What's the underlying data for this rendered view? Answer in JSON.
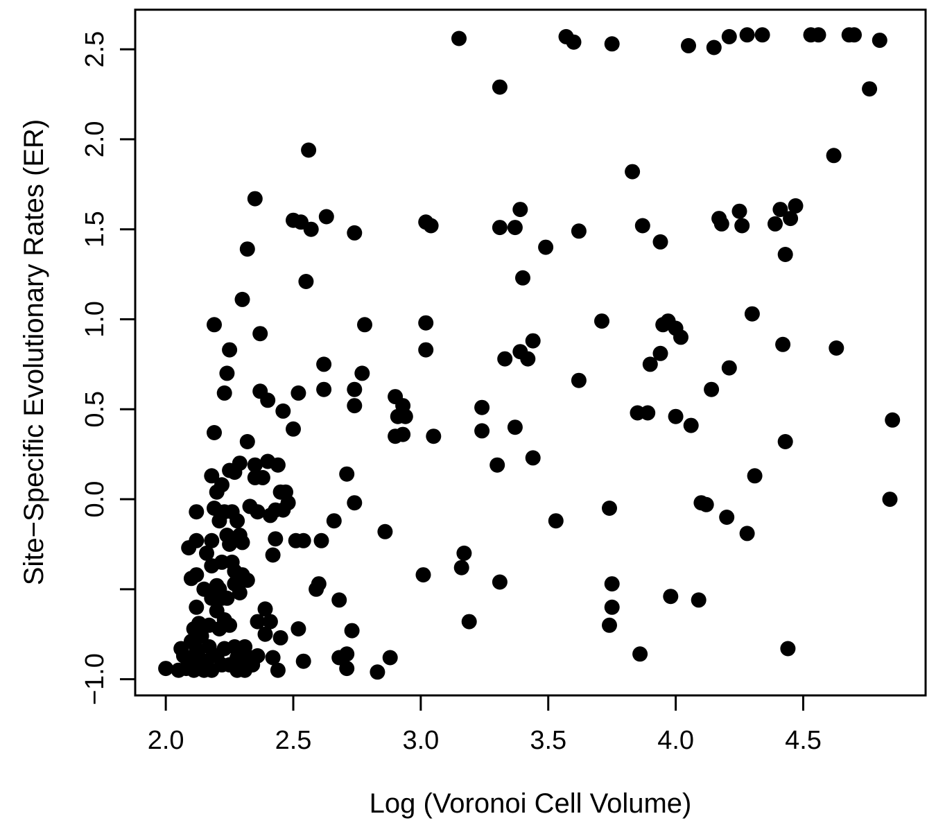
{
  "chart_data": {
    "type": "scatter",
    "title": "",
    "xlabel": "Log (Voronoi Cell Volume)",
    "ylabel": "Site−Specific Evolutionary Rates (ER)",
    "xlim": [
      1.88,
      4.98
    ],
    "ylim": [
      -1.09,
      2.72
    ],
    "x_ticks": [
      "2.0",
      "2.5",
      "3.0",
      "3.5",
      "4.0",
      "4.5"
    ],
    "y_ticks": [
      "−1.0",
      "",
      "0.0",
      "0.5",
      "1.0",
      "1.5",
      "2.0",
      "2.5"
    ],
    "y_tick_values": [
      -1.0,
      -0.5,
      0.0,
      0.5,
      1.0,
      1.5,
      2.0,
      2.5
    ],
    "grid": false,
    "legend": "none",
    "marker_color": "#000000",
    "points": [
      [
        2.0,
        -0.94
      ],
      [
        2.05,
        -0.95
      ],
      [
        2.06,
        -0.83
      ],
      [
        2.07,
        -0.87
      ],
      [
        2.08,
        -0.94
      ],
      [
        2.09,
        -0.89
      ],
      [
        2.09,
        -0.27
      ],
      [
        2.1,
        -0.44
      ],
      [
        2.1,
        -0.79
      ],
      [
        2.11,
        -0.72
      ],
      [
        2.11,
        -0.95
      ],
      [
        2.12,
        -0.07
      ],
      [
        2.12,
        -0.23
      ],
      [
        2.12,
        -0.42
      ],
      [
        2.12,
        -0.6
      ],
      [
        2.12,
        -0.83
      ],
      [
        2.13,
        -0.69
      ],
      [
        2.13,
        -0.88
      ],
      [
        2.13,
        -0.94
      ],
      [
        2.14,
        -0.76
      ],
      [
        2.15,
        -0.95
      ],
      [
        2.15,
        -0.5
      ],
      [
        2.16,
        -0.3
      ],
      [
        2.16,
        -0.9
      ],
      [
        2.17,
        -0.7
      ],
      [
        2.17,
        -0.82
      ],
      [
        2.18,
        -0.37
      ],
      [
        2.18,
        -0.23
      ],
      [
        2.18,
        -0.55
      ],
      [
        2.18,
        -0.95
      ],
      [
        2.18,
        0.13
      ],
      [
        2.19,
        -0.05
      ],
      [
        2.19,
        0.37
      ],
      [
        2.19,
        0.97
      ],
      [
        2.2,
        0.04
      ],
      [
        2.2,
        -0.48
      ],
      [
        2.2,
        -0.62
      ],
      [
        2.2,
        -0.87
      ],
      [
        2.21,
        -0.12
      ],
      [
        2.21,
        -0.5
      ],
      [
        2.21,
        -0.72
      ],
      [
        2.22,
        -0.92
      ],
      [
        2.22,
        -0.35
      ],
      [
        2.22,
        -0.55
      ],
      [
        2.22,
        0.08
      ],
      [
        2.23,
        -0.07
      ],
      [
        2.23,
        0.59
      ],
      [
        2.23,
        -0.67
      ],
      [
        2.23,
        -0.83
      ],
      [
        2.24,
        0.7
      ],
      [
        2.24,
        -0.2
      ],
      [
        2.24,
        -0.55
      ],
      [
        2.25,
        0.83
      ],
      [
        2.25,
        0.16
      ],
      [
        2.25,
        -0.25
      ],
      [
        2.25,
        -0.7
      ],
      [
        2.25,
        -0.92
      ],
      [
        2.26,
        -0.35
      ],
      [
        2.26,
        -0.07
      ],
      [
        2.27,
        -0.4
      ],
      [
        2.27,
        -0.47
      ],
      [
        2.27,
        -0.82
      ],
      [
        2.27,
        0.15
      ],
      [
        2.28,
        -0.88
      ],
      [
        2.28,
        -0.95
      ],
      [
        2.28,
        -0.12
      ],
      [
        2.29,
        0.2
      ],
      [
        2.29,
        -0.2
      ],
      [
        2.29,
        -0.52
      ],
      [
        2.3,
        -0.24
      ],
      [
        2.3,
        -0.42
      ],
      [
        2.3,
        -0.9
      ],
      [
        2.3,
        1.11
      ],
      [
        2.31,
        -0.82
      ],
      [
        2.31,
        -0.95
      ],
      [
        2.32,
        0.32
      ],
      [
        2.32,
        -0.45
      ],
      [
        2.32,
        1.39
      ],
      [
        2.33,
        -0.04
      ],
      [
        2.33,
        -0.88
      ],
      [
        2.34,
        -0.92
      ],
      [
        2.35,
        0.19
      ],
      [
        2.35,
        0.12
      ],
      [
        2.35,
        1.67
      ],
      [
        2.36,
        -0.07
      ],
      [
        2.36,
        -0.68
      ],
      [
        2.36,
        -0.87
      ],
      [
        2.37,
        0.6
      ],
      [
        2.37,
        0.92
      ],
      [
        2.38,
        0.12
      ],
      [
        2.39,
        -0.61
      ],
      [
        2.39,
        -0.75
      ],
      [
        2.4,
        0.21
      ],
      [
        2.4,
        0.55
      ],
      [
        2.41,
        -0.09
      ],
      [
        2.41,
        -0.68
      ],
      [
        2.42,
        -0.31
      ],
      [
        2.42,
        -0.88
      ],
      [
        2.43,
        -0.22
      ],
      [
        2.43,
        -0.06
      ],
      [
        2.44,
        0.19
      ],
      [
        2.44,
        -0.95
      ],
      [
        2.45,
        0.04
      ],
      [
        2.45,
        -0.77
      ],
      [
        2.46,
        -0.06
      ],
      [
        2.46,
        0.49
      ],
      [
        2.47,
        0.04
      ],
      [
        2.48,
        -0.02
      ],
      [
        2.5,
        0.39
      ],
      [
        2.5,
        1.55
      ],
      [
        2.51,
        -0.23
      ],
      [
        2.52,
        0.59
      ],
      [
        2.52,
        -0.72
      ],
      [
        2.53,
        1.54
      ],
      [
        2.54,
        -0.23
      ],
      [
        2.54,
        -0.9
      ],
      [
        2.55,
        1.21
      ],
      [
        2.56,
        1.94
      ],
      [
        2.57,
        1.5
      ],
      [
        2.59,
        -0.5
      ],
      [
        2.6,
        -0.47
      ],
      [
        2.61,
        -0.23
      ],
      [
        2.62,
        0.75
      ],
      [
        2.62,
        0.61
      ],
      [
        2.63,
        1.57
      ],
      [
        2.66,
        -0.12
      ],
      [
        2.68,
        -0.56
      ],
      [
        2.68,
        -0.88
      ],
      [
        2.71,
        0.14
      ],
      [
        2.71,
        -0.86
      ],
      [
        2.71,
        -0.94
      ],
      [
        2.73,
        -0.73
      ],
      [
        2.74,
        0.52
      ],
      [
        2.74,
        0.61
      ],
      [
        2.74,
        -0.02
      ],
      [
        2.74,
        1.48
      ],
      [
        2.77,
        0.7
      ],
      [
        2.78,
        0.97
      ],
      [
        2.86,
        -0.18
      ],
      [
        2.83,
        -0.96
      ],
      [
        2.88,
        -0.88
      ],
      [
        2.9,
        0.57
      ],
      [
        2.9,
        0.35
      ],
      [
        2.91,
        0.46
      ],
      [
        2.93,
        0.52
      ],
      [
        2.93,
        0.36
      ],
      [
        2.94,
        0.46
      ],
      [
        3.01,
        -0.42
      ],
      [
        3.02,
        1.54
      ],
      [
        3.02,
        0.98
      ],
      [
        3.02,
        0.83
      ],
      [
        3.04,
        1.52
      ],
      [
        3.05,
        0.35
      ],
      [
        3.15,
        2.56
      ],
      [
        3.16,
        -0.38
      ],
      [
        3.17,
        -0.3
      ],
      [
        3.19,
        -0.68
      ],
      [
        3.24,
        0.38
      ],
      [
        3.24,
        0.51
      ],
      [
        3.3,
        0.19
      ],
      [
        3.31,
        -0.46
      ],
      [
        3.31,
        1.51
      ],
      [
        3.31,
        2.29
      ],
      [
        3.33,
        0.78
      ],
      [
        3.37,
        1.51
      ],
      [
        3.37,
        0.4
      ],
      [
        3.39,
        0.82
      ],
      [
        3.39,
        1.61
      ],
      [
        3.4,
        1.23
      ],
      [
        3.42,
        0.78
      ],
      [
        3.44,
        0.88
      ],
      [
        3.44,
        0.23
      ],
      [
        3.49,
        1.4
      ],
      [
        3.53,
        -0.12
      ],
      [
        3.57,
        2.57
      ],
      [
        3.6,
        2.54
      ],
      [
        3.62,
        1.49
      ],
      [
        3.62,
        0.66
      ],
      [
        3.71,
        0.99
      ],
      [
        3.74,
        -0.05
      ],
      [
        3.74,
        -0.7
      ],
      [
        3.75,
        -0.47
      ],
      [
        3.75,
        -0.6
      ],
      [
        3.75,
        2.53
      ],
      [
        3.83,
        1.82
      ],
      [
        3.85,
        0.48
      ],
      [
        3.86,
        -0.86
      ],
      [
        3.87,
        1.52
      ],
      [
        3.89,
        0.48
      ],
      [
        3.9,
        0.75
      ],
      [
        3.94,
        0.81
      ],
      [
        3.94,
        1.43
      ],
      [
        3.95,
        0.97
      ],
      [
        3.97,
        0.99
      ],
      [
        3.98,
        -0.54
      ],
      [
        4.0,
        0.46
      ],
      [
        4.0,
        0.95
      ],
      [
        4.02,
        0.9
      ],
      [
        4.05,
        2.52
      ],
      [
        4.06,
        0.41
      ],
      [
        4.09,
        -0.56
      ],
      [
        4.1,
        -0.02
      ],
      [
        4.12,
        -0.03
      ],
      [
        4.14,
        0.61
      ],
      [
        4.15,
        2.51
      ],
      [
        4.17,
        1.56
      ],
      [
        4.18,
        1.53
      ],
      [
        4.2,
        -0.1
      ],
      [
        4.21,
        0.73
      ],
      [
        4.21,
        2.57
      ],
      [
        4.25,
        1.6
      ],
      [
        4.26,
        1.52
      ],
      [
        4.28,
        -0.19
      ],
      [
        4.28,
        2.58
      ],
      [
        4.3,
        1.03
      ],
      [
        4.31,
        0.13
      ],
      [
        4.34,
        2.58
      ],
      [
        4.39,
        1.53
      ],
      [
        4.41,
        1.61
      ],
      [
        4.42,
        0.86
      ],
      [
        4.43,
        0.32
      ],
      [
        4.43,
        1.36
      ],
      [
        4.44,
        -0.83
      ],
      [
        4.45,
        1.56
      ],
      [
        4.47,
        1.63
      ],
      [
        4.53,
        2.58
      ],
      [
        4.56,
        2.58
      ],
      [
        4.62,
        1.91
      ],
      [
        4.63,
        0.84
      ],
      [
        4.68,
        2.58
      ],
      [
        4.7,
        2.58
      ],
      [
        4.76,
        2.28
      ],
      [
        4.8,
        2.55
      ],
      [
        4.84,
        0.0
      ],
      [
        4.85,
        0.44
      ]
    ]
  }
}
